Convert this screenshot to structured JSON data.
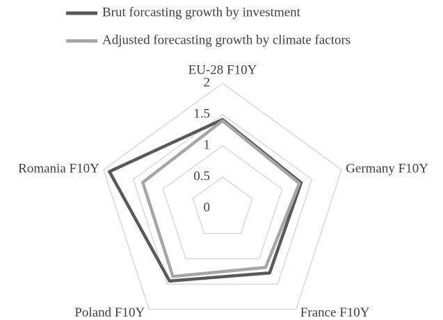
{
  "chart_data": {
    "type": "radar",
    "categories": [
      "EU-28 F10Y",
      "Germany F10Y",
      "France F10Y",
      "Poland F10Y",
      "Romania F10Y"
    ],
    "series": [
      {
        "name": "Brut forcasting growth by investment",
        "color": "#595959",
        "values": [
          1.42,
          1.32,
          1.28,
          1.44,
          1.9
        ]
      },
      {
        "name": "Adjusted forecasting growth by climate factors",
        "color": "#a6a6a6",
        "values": [
          1.4,
          1.29,
          1.17,
          1.35,
          1.34
        ]
      }
    ],
    "ylim": [
      0,
      2
    ],
    "yticks": [
      0,
      0.5,
      1,
      1.5,
      2
    ],
    "grid": true
  }
}
